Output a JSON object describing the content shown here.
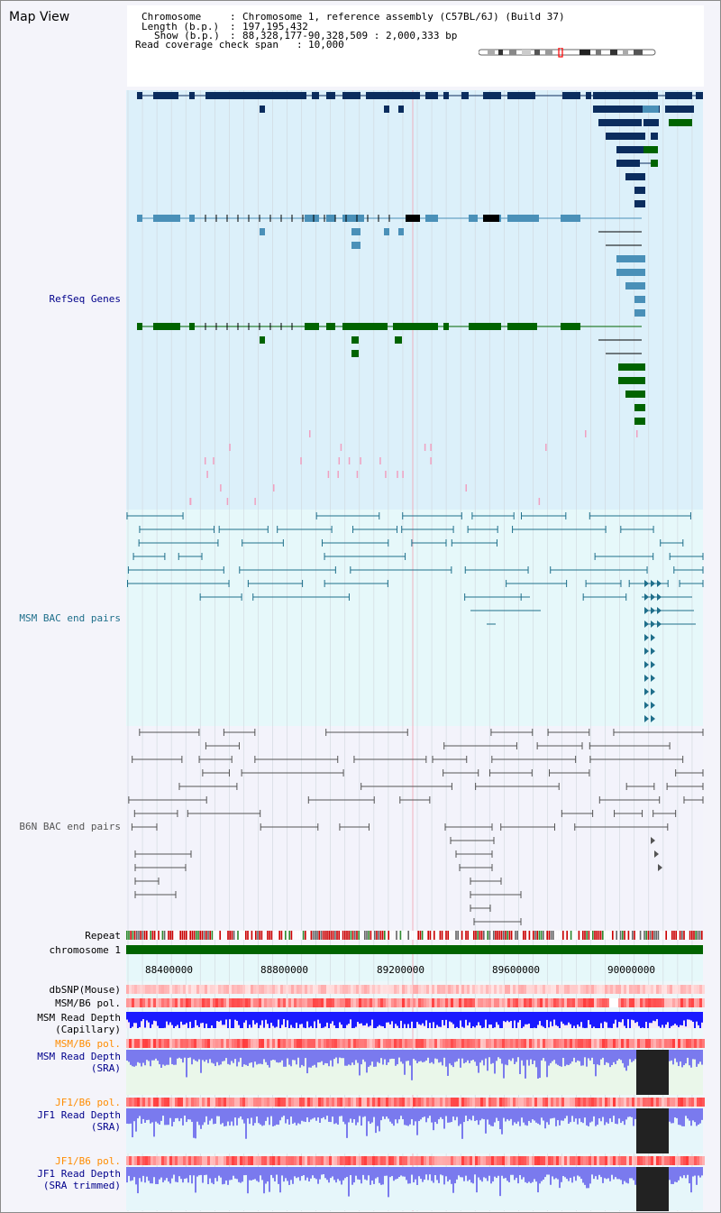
{
  "page": {
    "title": "Map View"
  },
  "info": {
    "chromosome_key": "Chromosome",
    "chromosome_value": "Chromosome 1, reference assembly (C57BL/6J) (Build 37)",
    "length_key": "Length (b.p.)",
    "length_value": "197,195,432",
    "show_key": "Show (b.p.)",
    "show_value": "88,328,177-90,328,509 : 2,000,333 bp",
    "coverage_key": "Read coverage check span",
    "coverage_value": "10,000"
  },
  "tracks": {
    "refseq": "RefSeq Genes",
    "msm_bac": "MSM BAC end pairs",
    "b6n_bac": "B6N BAC end pairs",
    "repeat": "Repeat",
    "chromosome": "chromosome 1",
    "dbsnp": "dbSNP(Mouse)",
    "msm_b6_pol": "MSM/B6 pol.",
    "msm_depth_cap_1": "MSM Read Depth",
    "msm_depth_cap_2": "(Capillary)",
    "msm_b6_pol_2": "MSM/B6 pol.",
    "msm_depth_sra_1": "MSM Read Depth",
    "msm_depth_sra_2": "(SRA)",
    "jf1_b6_pol": "JF1/B6 pol.",
    "jf1_depth_sra_1": "JF1 Read Depth",
    "jf1_depth_sra_2": "(SRA)",
    "jf1_b6_pol_2": "JF1/B6 pol.",
    "jf1_depth_trim_1": "JF1 Read Depth",
    "jf1_depth_trim_2": "(SRA trimmed)"
  },
  "axis_ticks": [
    "88400000",
    "88800000",
    "89200000",
    "89600000",
    "90000000"
  ],
  "colors": {
    "refseq_dark": "#0b2d5e",
    "refseq_mid": "#4a90b8",
    "refseq_green": "#006400",
    "msm_bac": "#1f6f8b",
    "b6n_bac": "#555555",
    "chromosome_bar": "#006400",
    "depth_blue": "#1a1aff",
    "depth_light": "#7a7aee",
    "pol_red": "#ee3333"
  }
}
